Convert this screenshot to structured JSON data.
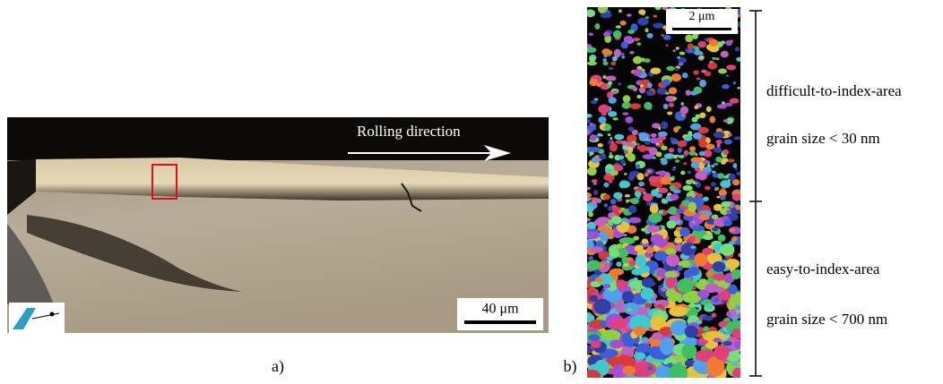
{
  "panel_a": {
    "label": "a)",
    "annotation": "Rolling direction",
    "scale_bar": "40 μm"
  },
  "panel_b": {
    "label": "b)",
    "scale_bar": "2 μm",
    "regions": [
      {
        "name": "difficult-to-index-area",
        "grain_size": "grain size < 30 nm"
      },
      {
        "name": "easy-to-index-area",
        "grain_size": "grain size < 700 nm"
      }
    ]
  }
}
